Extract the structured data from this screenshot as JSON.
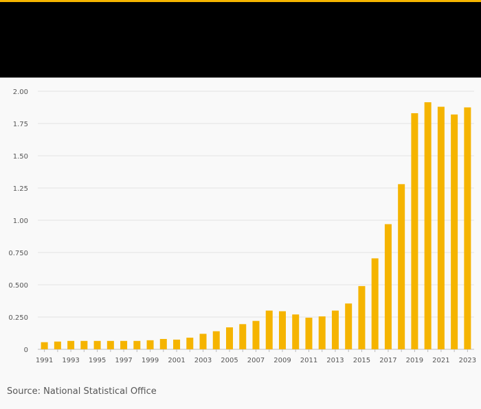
{
  "header": {
    "accent_color": "#f5b400",
    "background_color": "#000000"
  },
  "chart_data": {
    "type": "bar",
    "title": "",
    "xlabel": "",
    "ylabel": "",
    "ylim": [
      0,
      2.0
    ],
    "grid": true,
    "bar_color": "#f5b400",
    "y_ticks": [
      {
        "value": 0,
        "label": "0"
      },
      {
        "value": 0.25,
        "label": "0.250"
      },
      {
        "value": 0.5,
        "label": "0.500"
      },
      {
        "value": 0.75,
        "label": "0.750"
      },
      {
        "value": 1.0,
        "label": "1.00"
      },
      {
        "value": 1.25,
        "label": "1.25"
      },
      {
        "value": 1.5,
        "label": "1.50"
      },
      {
        "value": 1.75,
        "label": "1.75"
      },
      {
        "value": 2.0,
        "label": "2.00"
      }
    ],
    "categories": [
      "1991",
      "1992",
      "1993",
      "1994",
      "1995",
      "1996",
      "1997",
      "1998",
      "1999",
      "2000",
      "2001",
      "2002",
      "2003",
      "2004",
      "2005",
      "2006",
      "2007",
      "2008",
      "2009",
      "2010",
      "2011",
      "2012",
      "2013",
      "2014",
      "2015",
      "2016",
      "2017",
      "2018",
      "2019",
      "2020",
      "2021",
      "2022",
      "2023"
    ],
    "x_tick_labels": [
      "1991",
      "",
      "1993",
      "",
      "1995",
      "",
      "1997",
      "",
      "1999",
      "",
      "2001",
      "",
      "2003",
      "",
      "2005",
      "",
      "2007",
      "",
      "2009",
      "",
      "2011",
      "",
      "2013",
      "",
      "2015",
      "",
      "2017",
      "",
      "2019",
      "",
      "2021",
      "",
      "2023"
    ],
    "values": [
      0.055,
      0.06,
      0.065,
      0.065,
      0.065,
      0.065,
      0.065,
      0.065,
      0.07,
      0.08,
      0.075,
      0.09,
      0.12,
      0.14,
      0.17,
      0.195,
      0.22,
      0.3,
      0.295,
      0.27,
      0.245,
      0.255,
      0.3,
      0.355,
      0.49,
      0.705,
      0.97,
      1.28,
      1.83,
      1.915,
      1.88,
      1.82,
      1.875
    ]
  },
  "footer": {
    "source": "Source: National Statistical Office"
  }
}
